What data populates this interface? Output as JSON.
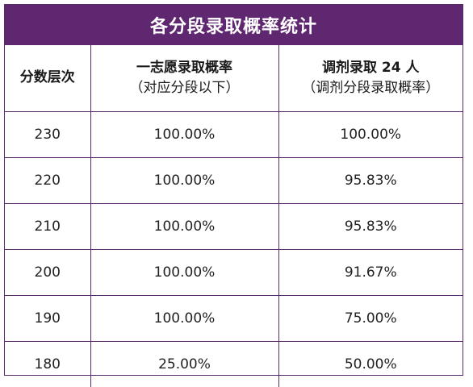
{
  "title": "各分段录取概率统计",
  "headers": {
    "score_level": "分数层次",
    "first_choice_main": "一志愿录取概率",
    "first_choice_sub": "（对应分段以下）",
    "adjust_main": "调剂录取 24 人",
    "adjust_sub": "（调剂分段录取概率）"
  },
  "rows": [
    {
      "score": "230",
      "first": "100.00%",
      "adjust": "100.00%"
    },
    {
      "score": "220",
      "first": "100.00%",
      "adjust": "95.83%"
    },
    {
      "score": "210",
      "first": "100.00%",
      "adjust": "95.83%"
    },
    {
      "score": "200",
      "first": "100.00%",
      "adjust": "91.67%"
    },
    {
      "score": "190",
      "first": "100.00%",
      "adjust": "75.00%"
    },
    {
      "score": "180",
      "first": "25.00%",
      "adjust": "50.00%"
    }
  ],
  "colors": {
    "header_bg": "#5e2770",
    "border": "#5b2a6a"
  }
}
